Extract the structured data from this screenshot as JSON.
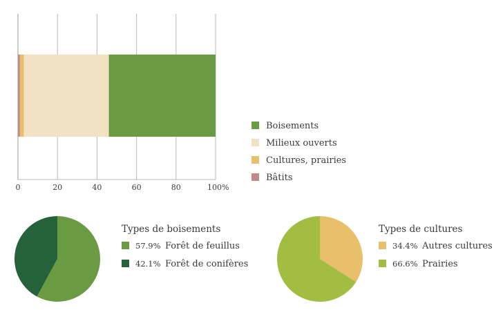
{
  "chart_data": [
    {
      "type": "bar",
      "orientation": "horizontal",
      "stacked": true,
      "xlim": [
        0,
        100
      ],
      "x_ticks": [
        "0",
        "20",
        "40",
        "60",
        "80",
        "100%"
      ],
      "grid": true,
      "legend_position": "right",
      "series": [
        {
          "name": "Bâtits",
          "values": [
            1
          ],
          "color": "#c0898a"
        },
        {
          "name": "Cultures, prairies",
          "values": [
            2
          ],
          "color": "#e8c06c"
        },
        {
          "name": "Milieux ouverts",
          "values": [
            43
          ],
          "color": "#f2e2c4"
        },
        {
          "name": "Boisements",
          "values": [
            54
          ],
          "color": "#6a9a41"
        }
      ],
      "legend_order": [
        "Boisements",
        "Milieux ouverts",
        "Cultures, prairies",
        "Bâtits"
      ]
    },
    {
      "type": "pie",
      "title": "Types de boisements",
      "slices": [
        {
          "label": "Forêt de feuillus",
          "value": 57.9,
          "pct_label": "57.9%",
          "color": "#6a9a41"
        },
        {
          "label": "Forêt de conifères",
          "value": 42.1,
          "pct_label": "42.1%",
          "color": "#25623b"
        }
      ]
    },
    {
      "type": "pie",
      "title": "Types de cultures",
      "slices": [
        {
          "label": "Autres cultures",
          "value": 34.4,
          "pct_label": "34.4%",
          "color": "#e8c06c"
        },
        {
          "label": "Prairies",
          "value": 66.6,
          "pct_label": "66.6%",
          "color": "#a2bd41"
        }
      ]
    }
  ]
}
